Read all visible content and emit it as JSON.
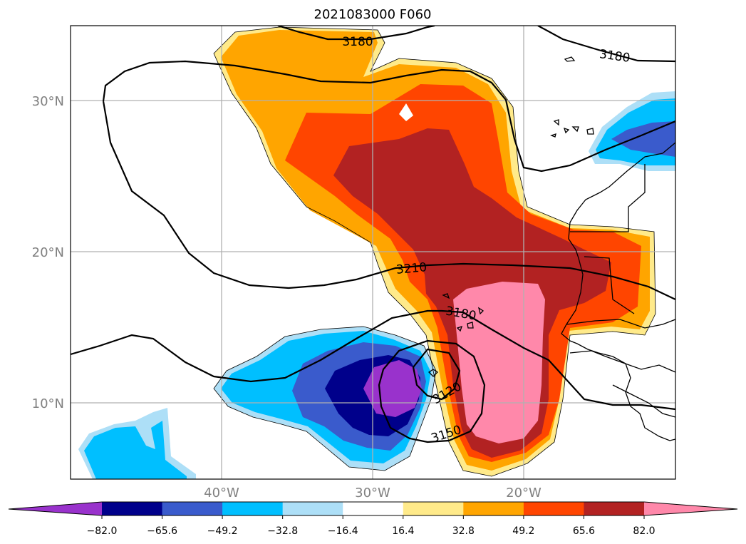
{
  "title": "2021083000 F060",
  "colors": {
    "m4": "#9932CC",
    "m3": "#00008B",
    "m2": "#3A5BCC",
    "m1": "#00BFFF",
    "m0": "#ADDFF7",
    "zero": "#FFFFFF",
    "p0": "#FFEA8A",
    "p1": "#FFA500",
    "p2": "#FF4500",
    "p3": "#B22222",
    "p4": "#FF88AA",
    "grid": "#B0B0B0",
    "coast": "#000000"
  },
  "map": {
    "lat_labels": [
      "30°N",
      "20°N",
      "10°N"
    ],
    "lon_labels": [
      "40°W",
      "30°W",
      "20°W"
    ]
  },
  "contours": {
    "labels": [
      "3180",
      "3180",
      "3210",
      "3180",
      "3120",
      "3150"
    ]
  },
  "colorbar": {
    "ticks": [
      "−82.0",
      "−65.6",
      "−49.2",
      "−32.8",
      "−16.4",
      "16.4",
      "32.8",
      "49.2",
      "65.6",
      "82.0"
    ],
    "segment_colors": [
      "m3",
      "m2",
      "m1",
      "m0",
      "zero",
      "p0",
      "p1",
      "p2",
      "p3"
    ],
    "under_color": "m4",
    "over_color": "p4"
  }
}
